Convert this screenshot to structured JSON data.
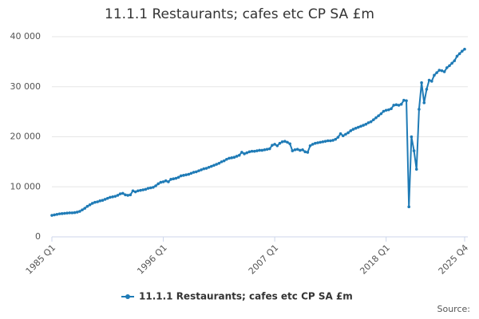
{
  "chart_data": {
    "type": "line",
    "title": "11.1.1 Restaurants; cafes etc CP SA £m",
    "categories": [
      "1985 Q1",
      null,
      null,
      null,
      null,
      null,
      null,
      null,
      null,
      null,
      null,
      null,
      null,
      null,
      null,
      null,
      null,
      null,
      null,
      null,
      null,
      null,
      null,
      null,
      null,
      null,
      null,
      null,
      null,
      null,
      null,
      null,
      null,
      null,
      null,
      null,
      null,
      null,
      null,
      null,
      null,
      null,
      null,
      null,
      "1996 Q1",
      null,
      null,
      null,
      null,
      null,
      null,
      null,
      null,
      null,
      null,
      null,
      null,
      null,
      null,
      null,
      null,
      null,
      null,
      null,
      null,
      null,
      null,
      null,
      null,
      null,
      null,
      null,
      null,
      null,
      null,
      null,
      null,
      null,
      null,
      null,
      null,
      null,
      null,
      null,
      null,
      null,
      null,
      null,
      "2007 Q1",
      null,
      null,
      null,
      null,
      null,
      null,
      null,
      null,
      null,
      null,
      null,
      null,
      null,
      null,
      null,
      null,
      null,
      null,
      null,
      null,
      null,
      null,
      null,
      null,
      null,
      null,
      null,
      null,
      null,
      null,
      null,
      null,
      null,
      null,
      null,
      null,
      null,
      null,
      null,
      null,
      null,
      null,
      null,
      "2018 Q1",
      null,
      null,
      null,
      null,
      null,
      null,
      null,
      null,
      null,
      null,
      null,
      null,
      null,
      null,
      null,
      null,
      null,
      null,
      null,
      null,
      null,
      null,
      null,
      null,
      null,
      null,
      null,
      null,
      null,
      null,
      "2025 Q4"
    ],
    "series": [
      {
        "name": "11.1.1 Restaurants; cafes etc CP SA £m",
        "color": "#1f7bb6",
        "values": [
          4300,
          4400,
          4500,
          4600,
          4650,
          4700,
          4750,
          4800,
          4800,
          4850,
          4950,
          5100,
          5400,
          5700,
          6100,
          6400,
          6700,
          6900,
          7000,
          7200,
          7300,
          7500,
          7700,
          7900,
          8000,
          8100,
          8300,
          8600,
          8700,
          8400,
          8300,
          8400,
          9200,
          9000,
          9200,
          9300,
          9400,
          9500,
          9700,
          9800,
          9900,
          10200,
          10600,
          10900,
          11000,
          11200,
          11000,
          11500,
          11600,
          11700,
          11900,
          12200,
          12300,
          12400,
          12500,
          12700,
          12900,
          13000,
          13200,
          13400,
          13600,
          13700,
          13900,
          14100,
          14300,
          14500,
          14700,
          15000,
          15200,
          15500,
          15700,
          15800,
          15900,
          16100,
          16300,
          16900,
          16600,
          16800,
          17000,
          17100,
          17100,
          17200,
          17300,
          17300,
          17400,
          17500,
          17600,
          18300,
          18500,
          18200,
          18700,
          19000,
          19100,
          18900,
          18600,
          17200,
          17400,
          17500,
          17300,
          17400,
          17000,
          16900,
          18200,
          18500,
          18700,
          18800,
          18900,
          19000,
          19100,
          19200,
          19200,
          19300,
          19500,
          19900,
          20600,
          20200,
          20500,
          20800,
          21200,
          21500,
          21700,
          21900,
          22100,
          22300,
          22500,
          22800,
          23000,
          23400,
          23800,
          24200,
          24600,
          25100,
          25300,
          25400,
          25600,
          26300,
          26400,
          26300,
          26500,
          27300,
          27200,
          6000,
          20000,
          17200,
          13500,
          25500,
          30800,
          26800,
          29500,
          31300,
          31100,
          32300,
          32800,
          33300,
          33200,
          33000,
          33800,
          34200,
          34700,
          35200,
          36100,
          36600,
          37100,
          37500
        ]
      }
    ],
    "ylim": [
      0,
      40000
    ],
    "yticks": [
      0,
      {
        "value": 10000,
        "label": "10 000"
      },
      {
        "value": 20000,
        "label": "20 000"
      },
      {
        "value": 30000,
        "label": "30 000"
      },
      {
        "value": 40000,
        "label": "40 000"
      }
    ],
    "grid": true,
    "source": "Source:"
  }
}
